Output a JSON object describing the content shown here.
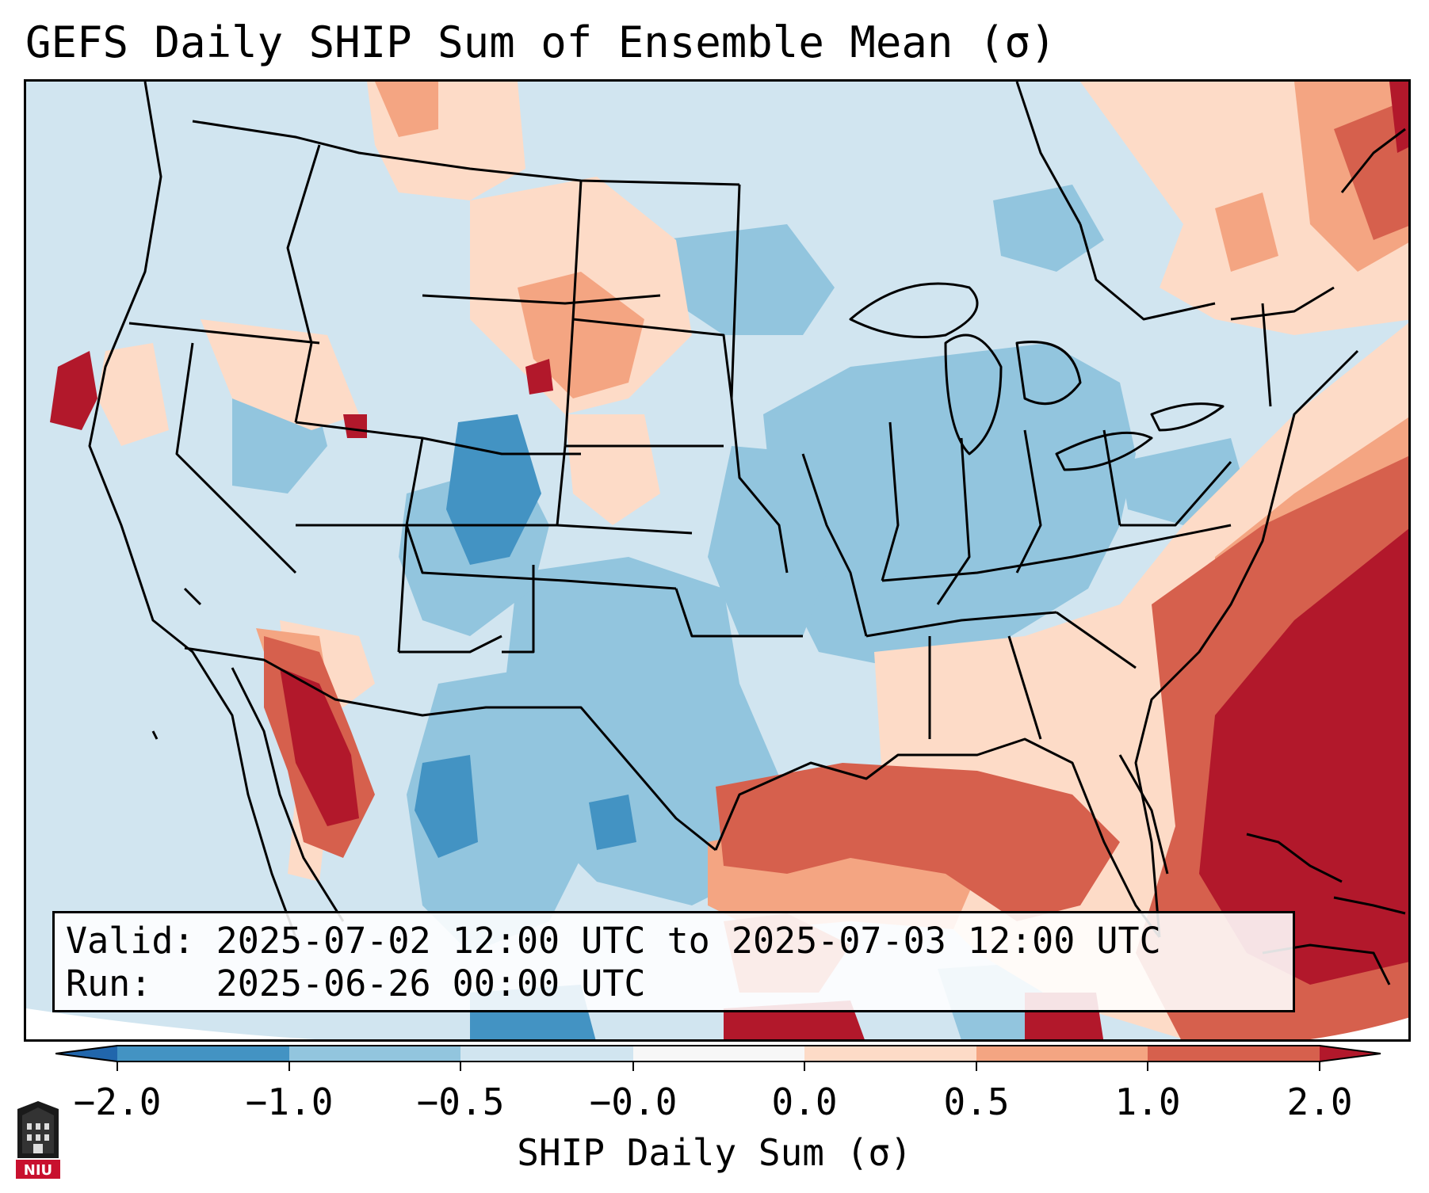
{
  "title": "GEFS Daily SHIP Sum of Ensemble Mean (σ)",
  "info": {
    "valid_line": "Valid: 2025-07-02 12:00 UTC to 2025-07-03 12:00 UTC",
    "run_line": "Run:   2025-06-26 00:00 UTC"
  },
  "colorbar": {
    "label": "SHIP Daily Sum (σ)",
    "ticks": [
      "−2.0",
      "−1.0",
      "−0.5",
      "−0.0",
      "0.0",
      "0.5",
      "1.0",
      "2.0"
    ],
    "colors": {
      "extend_low": "#2166ac",
      "deep_blue": "#4393c3",
      "mid_blue": "#92c5de",
      "light_blue": "#d1e5f0",
      "white": "#f7f7f7",
      "light_red": "#fddbc7",
      "mid_red": "#f4a582",
      "deep_red": "#d6604d",
      "extend_high": "#b2182b"
    }
  },
  "logo": {
    "text": "NIU"
  }
}
